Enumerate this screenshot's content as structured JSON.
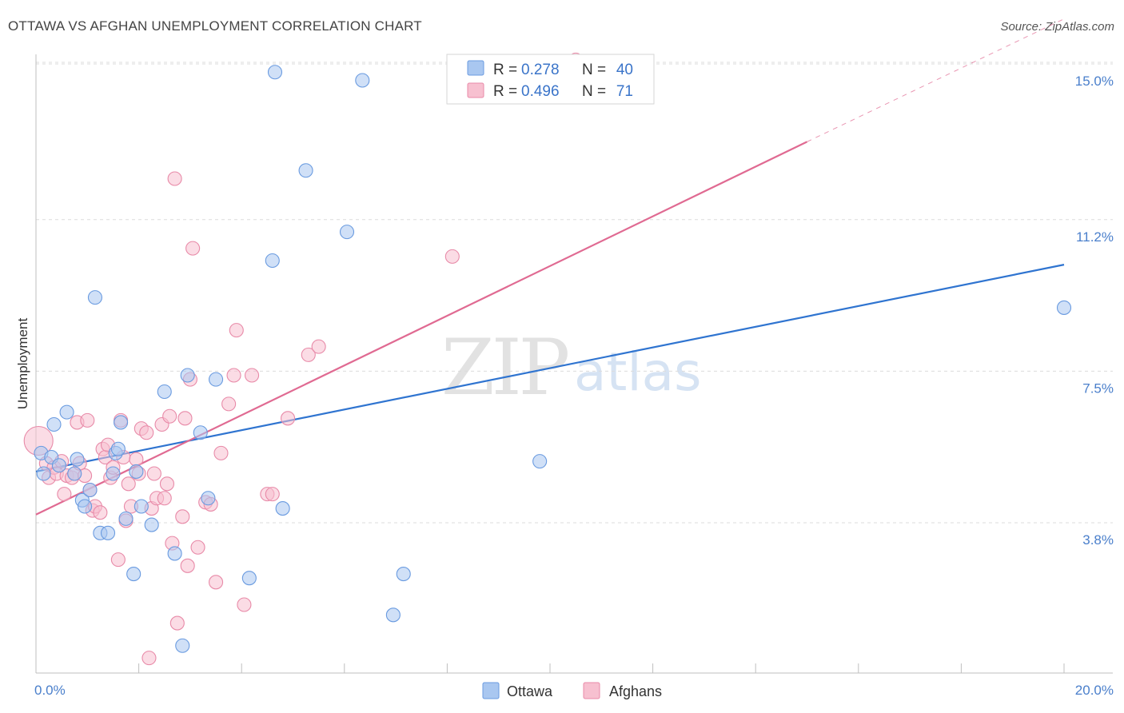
{
  "chart_data": {
    "type": "scatter",
    "title": "OTTAWA VS AFGHAN UNEMPLOYMENT CORRELATION CHART",
    "source": "Source: ZipAtlas.com",
    "xlabel": "",
    "ylabel": "Unemployment",
    "xlim": [
      0,
      20
    ],
    "ylim": [
      0,
      15.4
    ],
    "x_ticks": [
      {
        "value": 0,
        "label": "0.0%"
      },
      {
        "value": 20,
        "label": "20.0%"
      }
    ],
    "y_ticks": [
      {
        "value": 3.8,
        "label": "3.8%"
      },
      {
        "value": 7.5,
        "label": "7.5%"
      },
      {
        "value": 11.2,
        "label": "11.2%"
      },
      {
        "value": 15.0,
        "label": "15.0%"
      }
    ],
    "watermark": {
      "zip": "ZIP",
      "atlas": "atlas"
    },
    "legend": [
      {
        "r_label": "R =",
        "r_value": "0.278",
        "n_label": "N =",
        "n_value": "40",
        "color": "#a9c7f0",
        "stroke": "#6a9be0"
      },
      {
        "r_label": "R =",
        "r_value": "0.496",
        "n_label": "N =",
        "n_value": "71",
        "color": "#f7c0d0",
        "stroke": "#e88aa8"
      }
    ],
    "series": [
      {
        "name": "Ottawa",
        "color": "#a9c7f0",
        "stroke": "#6a9be0",
        "line_color": "#2f74d0",
        "trend": {
          "x0": 0,
          "y0": 5.05,
          "x1": 20,
          "y1": 10.1
        },
        "points": [
          [
            0.1,
            5.5
          ],
          [
            0.3,
            5.4
          ],
          [
            0.15,
            5.0
          ],
          [
            0.35,
            6.2
          ],
          [
            0.45,
            5.2
          ],
          [
            0.6,
            6.5
          ],
          [
            0.75,
            5.0
          ],
          [
            0.8,
            5.35
          ],
          [
            0.9,
            4.35
          ],
          [
            0.95,
            4.2
          ],
          [
            1.05,
            4.6
          ],
          [
            1.15,
            9.3
          ],
          [
            1.25,
            3.55
          ],
          [
            1.4,
            3.55
          ],
          [
            1.5,
            5.0
          ],
          [
            1.55,
            5.5
          ],
          [
            1.6,
            5.6
          ],
          [
            1.65,
            6.25
          ],
          [
            1.75,
            3.9
          ],
          [
            1.9,
            2.55
          ],
          [
            1.95,
            5.05
          ],
          [
            2.05,
            4.2
          ],
          [
            2.25,
            3.75
          ],
          [
            2.5,
            7.0
          ],
          [
            2.7,
            3.05
          ],
          [
            2.85,
            0.8
          ],
          [
            2.95,
            7.4
          ],
          [
            3.2,
            6.0
          ],
          [
            3.35,
            4.4
          ],
          [
            3.5,
            7.3
          ],
          [
            4.15,
            2.45
          ],
          [
            4.6,
            10.2
          ],
          [
            4.65,
            14.8
          ],
          [
            4.8,
            4.15
          ],
          [
            5.25,
            12.4
          ],
          [
            6.05,
            10.9
          ],
          [
            6.35,
            14.6
          ],
          [
            6.95,
            1.55
          ],
          [
            7.15,
            2.55
          ],
          [
            9.8,
            5.3
          ],
          [
            20.0,
            9.05
          ]
        ]
      },
      {
        "name": "Afghans",
        "color": "#f7c0d0",
        "stroke": "#e88aa8",
        "line_color": "#e06a92",
        "trend": {
          "x0": 0,
          "y0": 4.0,
          "x1": 15.0,
          "y1": 13.1
        },
        "trend_dashed": {
          "x0": 15.0,
          "y0": 13.1,
          "x1": 20.0,
          "y1": 16.1
        },
        "points": [
          [
            0.05,
            5.8
          ],
          [
            0.2,
            5.25
          ],
          [
            0.25,
            4.9
          ],
          [
            0.35,
            5.15
          ],
          [
            0.4,
            5.0
          ],
          [
            0.5,
            5.3
          ],
          [
            0.55,
            4.5
          ],
          [
            0.6,
            4.95
          ],
          [
            0.7,
            4.9
          ],
          [
            0.75,
            5.0
          ],
          [
            0.8,
            6.25
          ],
          [
            0.85,
            5.25
          ],
          [
            0.95,
            4.95
          ],
          [
            1.0,
            6.3
          ],
          [
            1.05,
            4.6
          ],
          [
            1.1,
            4.1
          ],
          [
            1.15,
            4.2
          ],
          [
            1.25,
            4.05
          ],
          [
            1.3,
            5.6
          ],
          [
            1.35,
            5.4
          ],
          [
            1.4,
            5.7
          ],
          [
            1.45,
            4.9
          ],
          [
            1.5,
            5.15
          ],
          [
            1.6,
            2.9
          ],
          [
            1.65,
            6.3
          ],
          [
            1.7,
            5.4
          ],
          [
            1.75,
            3.85
          ],
          [
            1.8,
            4.75
          ],
          [
            1.85,
            4.2
          ],
          [
            1.95,
            5.35
          ],
          [
            2.0,
            5.0
          ],
          [
            2.05,
            6.1
          ],
          [
            2.15,
            6.0
          ],
          [
            2.2,
            0.5
          ],
          [
            2.25,
            4.15
          ],
          [
            2.3,
            5.0
          ],
          [
            2.35,
            4.4
          ],
          [
            2.45,
            6.2
          ],
          [
            2.5,
            4.4
          ],
          [
            2.55,
            4.75
          ],
          [
            2.6,
            6.4
          ],
          [
            2.65,
            3.3
          ],
          [
            2.7,
            12.2
          ],
          [
            2.75,
            1.35
          ],
          [
            2.85,
            3.95
          ],
          [
            2.9,
            6.35
          ],
          [
            2.95,
            2.75
          ],
          [
            3.0,
            7.3
          ],
          [
            3.05,
            10.5
          ],
          [
            3.15,
            3.2
          ],
          [
            3.3,
            4.3
          ],
          [
            3.4,
            4.25
          ],
          [
            3.5,
            2.35
          ],
          [
            3.6,
            5.5
          ],
          [
            3.75,
            6.7
          ],
          [
            3.85,
            7.4
          ],
          [
            3.9,
            8.5
          ],
          [
            4.05,
            1.8
          ],
          [
            4.2,
            7.4
          ],
          [
            4.5,
            4.5
          ],
          [
            4.6,
            4.5
          ],
          [
            4.9,
            6.35
          ],
          [
            5.3,
            7.9
          ],
          [
            5.5,
            8.1
          ],
          [
            8.1,
            10.3
          ],
          [
            10.5,
            15.1
          ]
        ]
      }
    ]
  }
}
